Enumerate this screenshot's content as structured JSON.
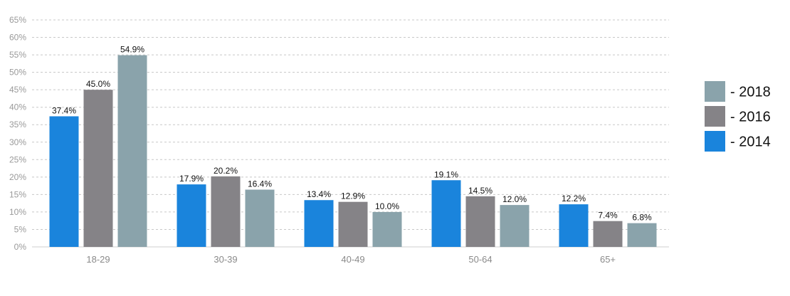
{
  "chart_data": {
    "type": "bar",
    "categories": [
      "18-29",
      "30-39",
      "40-49",
      "50-64",
      "65+"
    ],
    "series": [
      {
        "name": "- 2014",
        "color": "#1a84dc",
        "values": [
          37.4,
          17.9,
          13.4,
          19.1,
          12.2
        ],
        "labels": [
          "37.4%",
          "17.9%",
          "13.4%",
          "19.1%",
          "12.2%"
        ]
      },
      {
        "name": "- 2016",
        "color": "#858387",
        "values": [
          45.0,
          20.2,
          12.9,
          14.5,
          7.4
        ],
        "labels": [
          "45.0%",
          "20.2%",
          "12.9%",
          "14.5%",
          "7.4%"
        ]
      },
      {
        "name": "- 2018",
        "color": "#8aa3ab",
        "values": [
          54.9,
          16.4,
          10.0,
          12.0,
          6.8
        ],
        "labels": [
          "54.9%",
          "16.4%",
          "10.0%",
          "12.0%",
          "6.8%"
        ]
      }
    ],
    "ylim": [
      0,
      65
    ],
    "yticks": [
      0,
      5,
      10,
      15,
      20,
      25,
      30,
      35,
      40,
      45,
      50,
      55,
      60,
      65
    ],
    "ytick_labels": [
      "0%",
      "5%",
      "10%",
      "15%",
      "20%",
      "25%",
      "30%",
      "35%",
      "40%",
      "45%",
      "50%",
      "55%",
      "60%",
      "65%"
    ],
    "grid": true,
    "legend_position": "right",
    "legend_order": [
      "- 2018",
      "- 2016",
      "- 2014"
    ],
    "title": "",
    "xlabel": "",
    "ylabel": ""
  }
}
